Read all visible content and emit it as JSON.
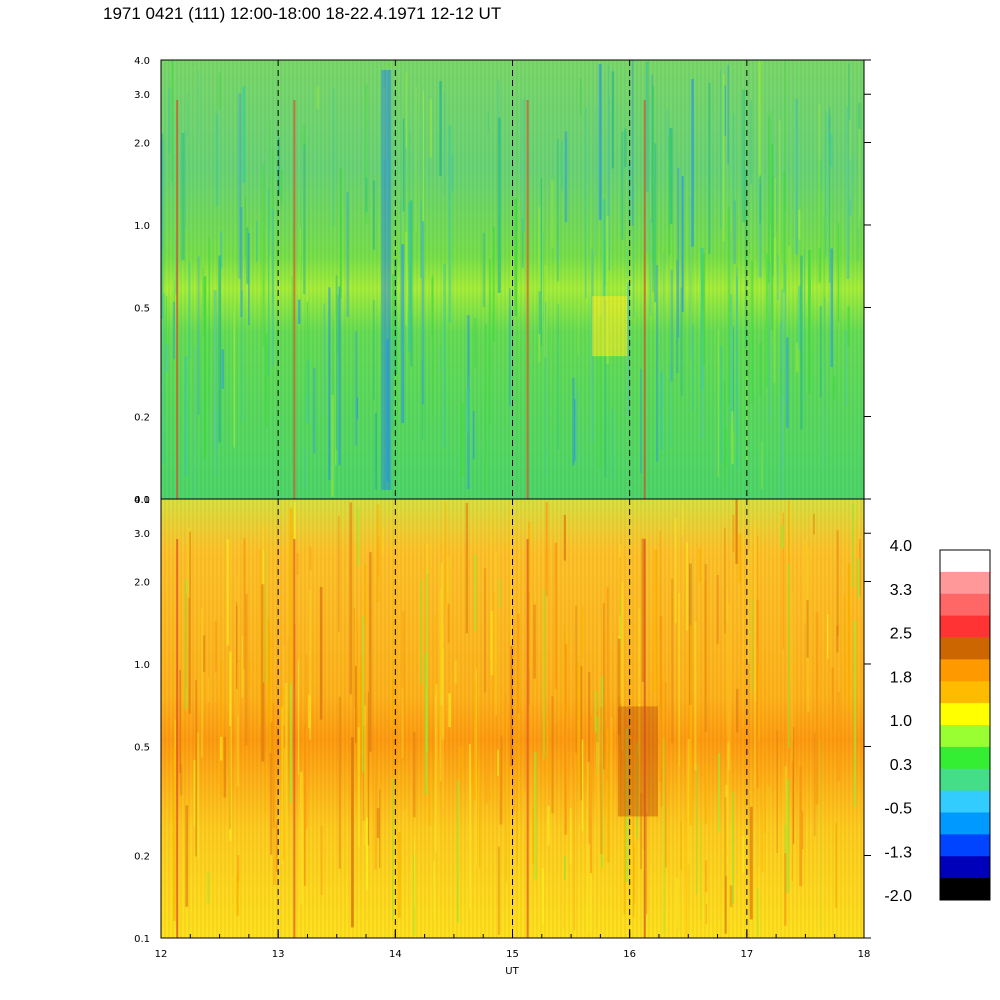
{
  "title": "1971 0421 (111) 12:00-18:00 18-22.4.1971  12-12 UT",
  "chart_data": [
    {
      "type": "heatmap",
      "panel": "top",
      "xlabel": "",
      "ylabel": "",
      "x_range": [
        12,
        18
      ],
      "y_range": [
        0.1,
        4.0
      ],
      "y_scale": "log",
      "y_ticks": [
        0.1,
        0.2,
        0.5,
        1.0,
        2.0,
        3.0,
        4.0
      ],
      "y_tick_labels": [
        "0.1",
        "0.2",
        "0.5",
        "1.0",
        "2.0",
        "3.0",
        "4.0"
      ],
      "dashed_time_markers": [
        13,
        14,
        15,
        16,
        17
      ],
      "dominant_levels": "green / blue-green with a yellow-green band near 0.6; blue streak near 13.9 UT"
    },
    {
      "type": "heatmap",
      "panel": "bottom",
      "xlabel": "UT",
      "ylabel": "",
      "x_range": [
        12,
        18
      ],
      "x_ticks": [
        12,
        13,
        14,
        15,
        16,
        17,
        18
      ],
      "x_tick_labels": [
        "12",
        "13",
        "14",
        "15",
        "16",
        "17",
        "18"
      ],
      "y_range": [
        0.1,
        4.0
      ],
      "y_scale": "log",
      "y_ticks": [
        0.1,
        0.2,
        0.5,
        1.0,
        2.0,
        3.0,
        4.0
      ],
      "y_tick_labels": [
        "0.1",
        "0.2",
        "0.5",
        "1.0",
        "2.0",
        "3.0",
        "4.0"
      ],
      "dashed_time_markers": [
        13,
        14,
        15,
        16,
        17
      ],
      "dominant_levels": "yellow / orange with an orange band near 0.7 and dark orange intensification near 16 UT at 0.3-0.6"
    }
  ],
  "colorbar": {
    "labels": [
      "4.0",
      "3.3",
      "2.5",
      "1.8",
      "1.0",
      "0.3",
      "-0.5",
      "-1.3",
      "-2.0"
    ],
    "colors_top_to_bottom": [
      "#ffffff",
      "#ff9999",
      "#ff6666",
      "#ff3333",
      "#cc6600",
      "#ff9900",
      "#ffbb00",
      "#ffff00",
      "#99ff33",
      "#33ee33",
      "#44dd88",
      "#33ccff",
      "#0099ff",
      "#0044ff",
      "#0000bb",
      "#000000"
    ]
  }
}
